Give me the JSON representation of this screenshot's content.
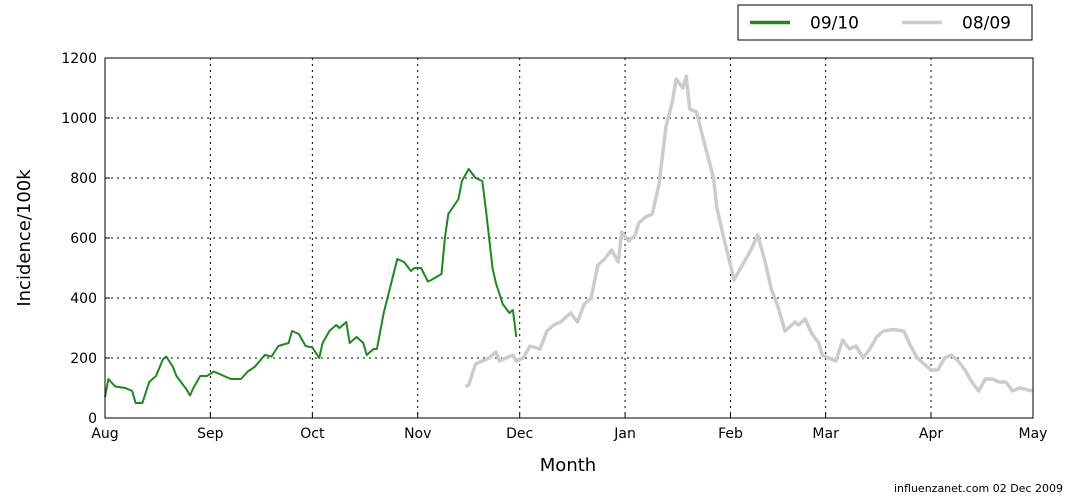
{
  "chart_data": {
    "type": "line",
    "xlabel": "Month",
    "ylabel": "Incidence/100k",
    "footer": "influenzanet.com 02 Dec 2009",
    "xlim": [
      0,
      273
    ],
    "ylim": [
      0,
      1200
    ],
    "xticks": [
      {
        "value": 0,
        "label": "Aug"
      },
      {
        "value": 31,
        "label": "Sep"
      },
      {
        "value": 61,
        "label": "Oct"
      },
      {
        "value": 92,
        "label": "Nov"
      },
      {
        "value": 122,
        "label": "Dec"
      },
      {
        "value": 153,
        "label": "Jan"
      },
      {
        "value": 184,
        "label": "Feb"
      },
      {
        "value": 212,
        "label": "Mar"
      },
      {
        "value": 243,
        "label": "Apr"
      },
      {
        "value": 273,
        "label": "May"
      }
    ],
    "yticks": [
      0,
      200,
      400,
      600,
      800,
      1000,
      1200
    ],
    "grid": true,
    "legend": "upper right",
    "series": [
      {
        "name": "09/10",
        "color": "#1a8a1a",
        "x": [
          0,
          1,
          3,
          6,
          8,
          9,
          11,
          13,
          15,
          17,
          18,
          20,
          21,
          24,
          25,
          26,
          28,
          30,
          32,
          35,
          37,
          40,
          42,
          44,
          47,
          49,
          51,
          54,
          55,
          57,
          59,
          61,
          63,
          64,
          66,
          68,
          69,
          71,
          72,
          74,
          76,
          77,
          79,
          80,
          82,
          84,
          86,
          88,
          90,
          91,
          93,
          95,
          96,
          99,
          100,
          101,
          104,
          105,
          107,
          109,
          111,
          112,
          114,
          115,
          117,
          119,
          120,
          121
        ],
        "values": [
          70,
          130,
          105,
          100,
          90,
          50,
          50,
          120,
          140,
          195,
          205,
          170,
          140,
          95,
          75,
          100,
          140,
          140,
          155,
          140,
          130,
          130,
          155,
          170,
          210,
          205,
          240,
          250,
          290,
          280,
          240,
          235,
          200,
          250,
          290,
          310,
          300,
          320,
          250,
          270,
          250,
          210,
          230,
          230,
          350,
          440,
          530,
          520,
          490,
          500,
          500,
          455,
          460,
          480,
          600,
          680,
          730,
          790,
          830,
          800,
          790,
          700,
          500,
          450,
          380,
          350,
          360,
          270
        ]
      },
      {
        "name": "08/09",
        "color": "#cccccc",
        "x": [
          106,
          107,
          109,
          111,
          113,
          115,
          116,
          118,
          120,
          121,
          123,
          125,
          128,
          130,
          132,
          134,
          137,
          139,
          141,
          143,
          145,
          147,
          149,
          151,
          152,
          154,
          156,
          157,
          159,
          161,
          163,
          165,
          167,
          168,
          170,
          171,
          172,
          174,
          176,
          179,
          180,
          182,
          184,
          185,
          187,
          189,
          190,
          192,
          194,
          196,
          198,
          200,
          201,
          203,
          204,
          206,
          208,
          210,
          211,
          213,
          215,
          217,
          219,
          221,
          223,
          225,
          227,
          229,
          232,
          235,
          237,
          239,
          241,
          243,
          245,
          247,
          249,
          251,
          253,
          255,
          257,
          259,
          261,
          263,
          265,
          267,
          269,
          273
        ],
        "values": [
          105,
          110,
          180,
          190,
          200,
          220,
          190,
          200,
          210,
          190,
          200,
          240,
          230,
          290,
          310,
          320,
          350,
          320,
          380,
          400,
          510,
          530,
          560,
          520,
          620,
          590,
          610,
          650,
          670,
          680,
          780,
          970,
          1060,
          1130,
          1100,
          1140,
          1030,
          1020,
          930,
          800,
          700,
          600,
          510,
          460,
          500,
          540,
          560,
          610,
          530,
          430,
          370,
          290,
          300,
          320,
          310,
          330,
          280,
          250,
          210,
          200,
          190,
          260,
          230,
          240,
          200,
          230,
          270,
          290,
          295,
          290,
          240,
          200,
          180,
          160,
          160,
          200,
          210,
          190,
          160,
          120,
          90,
          130,
          130,
          120,
          120,
          90,
          100,
          90
        ]
      }
    ]
  }
}
